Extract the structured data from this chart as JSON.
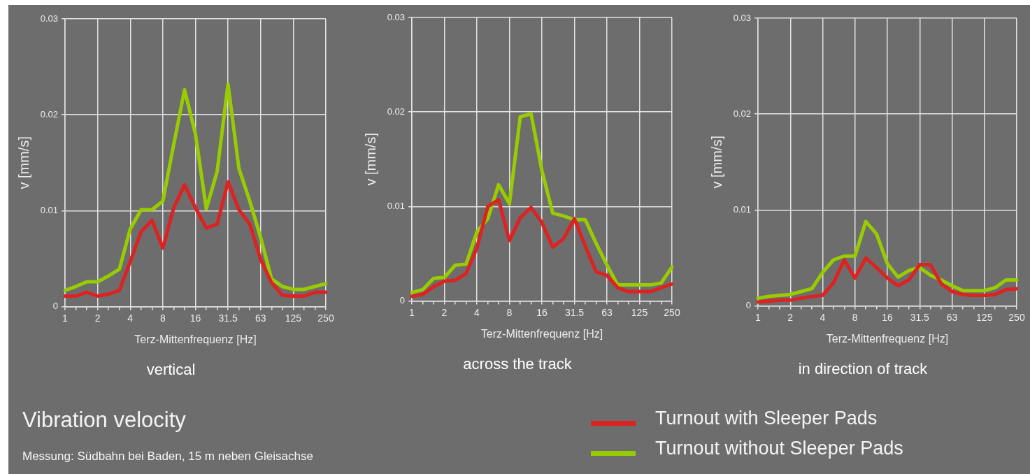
{
  "chart_data": [
    {
      "type": "line",
      "title": "vertical",
      "xlabel": "Terz-Mittenfrequenz [Hz]",
      "ylabel": "v [mm/s]",
      "categories": [
        "1",
        null,
        null,
        "2",
        null,
        null,
        "4",
        null,
        null,
        "8",
        null,
        null,
        "16",
        null,
        null,
        "31.5",
        null,
        null,
        "63",
        null,
        null,
        "125",
        null,
        null,
        "250"
      ],
      "series": [
        {
          "color": "#dd2222",
          "values": [
            0.0011,
            0.0011,
            0.0015,
            0.0011,
            0.0013,
            0.0017,
            0.0047,
            0.0078,
            0.009,
            0.0061,
            0.0103,
            0.0127,
            0.0103,
            0.0082,
            0.0086,
            0.013,
            0.0101,
            0.0086,
            0.0049,
            0.0025,
            0.0012,
            0.0011,
            0.0011,
            0.0015,
            0.0015
          ]
        },
        {
          "color": "#99cc00",
          "values": [
            0.0017,
            0.0021,
            0.0026,
            0.0026,
            0.0032,
            0.0039,
            0.0081,
            0.0101,
            0.0101,
            0.011,
            0.0169,
            0.0226,
            0.018,
            0.0102,
            0.0141,
            0.0232,
            0.0144,
            0.011,
            0.0072,
            0.0029,
            0.0021,
            0.0018,
            0.0018,
            0.0021,
            0.0024
          ]
        }
      ],
      "ylim": [
        0,
        0.03
      ],
      "yticks": [
        0,
        0.01,
        0.02,
        0.03
      ],
      "grid": true
    },
    {
      "type": "line",
      "title": "across the track",
      "xlabel": "Terz-Mittenfrequenz [Hz]",
      "ylabel": "v [mm/s]",
      "categories": [
        "1",
        null,
        null,
        "2",
        null,
        null,
        "4",
        null,
        null,
        "8",
        null,
        null,
        "16",
        null,
        null,
        "31.5",
        null,
        null,
        "63",
        null,
        null,
        "125",
        null,
        null,
        "250"
      ],
      "series": [
        {
          "color": "#dd2222",
          "values": [
            0.0005,
            0.0007,
            0.0015,
            0.0021,
            0.0022,
            0.0029,
            0.0056,
            0.01,
            0.0107,
            0.0064,
            0.0088,
            0.0099,
            0.0083,
            0.0057,
            0.0066,
            0.0087,
            0.0058,
            0.0031,
            0.0027,
            0.0014,
            0.001,
            0.001,
            0.001,
            0.0014,
            0.0018
          ]
        },
        {
          "color": "#99cc00",
          "values": [
            0.0009,
            0.0012,
            0.0024,
            0.0025,
            0.0038,
            0.0039,
            0.0073,
            0.0087,
            0.0123,
            0.0103,
            0.0195,
            0.0198,
            0.0138,
            0.0093,
            0.009,
            0.0086,
            0.0086,
            0.0061,
            0.0038,
            0.0017,
            0.0017,
            0.0017,
            0.0017,
            0.0019,
            0.0036
          ]
        }
      ],
      "ylim": [
        0,
        0.03
      ],
      "yticks": [
        0,
        0.01,
        0.02,
        0.03
      ],
      "grid": true
    },
    {
      "type": "line",
      "title": "in direction of track",
      "xlabel": "Terz-Mittenfrequenz [Hz]",
      "ylabel": "v [mm/s]",
      "categories": [
        "1",
        null,
        null,
        "2",
        null,
        null,
        "4",
        null,
        null,
        "8",
        null,
        null,
        "16",
        null,
        null,
        "31.5",
        null,
        null,
        "63",
        null,
        null,
        "125",
        null,
        null,
        "250"
      ],
      "series": [
        {
          "name": "Turnout with Sleeper Pads",
          "color": "#dd2222",
          "values": [
            0.0004,
            0.0005,
            0.0006,
            0.0006,
            0.0008,
            0.001,
            0.0011,
            0.0024,
            0.0048,
            0.0029,
            0.005,
            0.004,
            0.0029,
            0.0021,
            0.0027,
            0.0043,
            0.0043,
            0.0023,
            0.0015,
            0.0012,
            0.0011,
            0.0011,
            0.0012,
            0.0017,
            0.0018
          ]
        },
        {
          "name": "Turnout without Sleeper Pads",
          "color": "#99cc00",
          "values": [
            0.0008,
            0.001,
            0.0011,
            0.0012,
            0.0015,
            0.0018,
            0.0035,
            0.0048,
            0.0052,
            0.0052,
            0.0088,
            0.0075,
            0.0044,
            0.003,
            0.0037,
            0.004,
            0.0032,
            0.0027,
            0.0021,
            0.0016,
            0.0016,
            0.0016,
            0.0019,
            0.0027,
            0.0027
          ]
        }
      ],
      "ylim": [
        0,
        0.03
      ],
      "yticks": [
        0,
        0.01,
        0.02,
        0.03
      ],
      "grid": true,
      "legend": "bottom"
    },
    {
      "type": "other",
      "title": "Vibration velocity",
      "annotations": [
        "Messung: Südbahn bei Baden, 15 m neben Gleisachse"
      ]
    }
  ]
}
